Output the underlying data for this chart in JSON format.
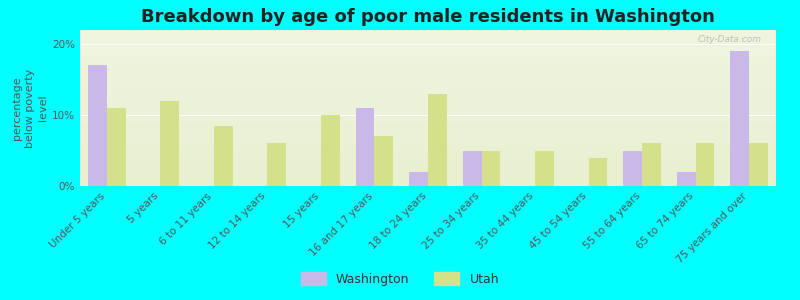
{
  "title": "Breakdown by age of poor male residents in Washington",
  "ylabel": "percentage\nbelow poverty\nlevel",
  "categories": [
    "Under 5 years",
    "5 years",
    "6 to 11 years",
    "12 to 14 years",
    "15 years",
    "16 and 17 years",
    "18 to 24 years",
    "25 to 34 years",
    "35 to 44 years",
    "45 to 54 years",
    "55 to 64 years",
    "65 to 74 years",
    "75 years and over"
  ],
  "washington": [
    17.0,
    0,
    0,
    0,
    0,
    11.0,
    2.0,
    5.0,
    0,
    0,
    5.0,
    2.0,
    19.0
  ],
  "utah": [
    11.0,
    12.0,
    8.5,
    6.0,
    10.0,
    7.0,
    13.0,
    5.0,
    5.0,
    4.0,
    6.0,
    6.0,
    6.0
  ],
  "washington_color": "#c9b8e8",
  "utah_color": "#d4e08a",
  "background_color": "#00ffff",
  "plot_bg_top": "#f0f5e0",
  "plot_bg_bottom": "#e8f0d0",
  "ylim": [
    0,
    22
  ],
  "yticks": [
    0,
    10,
    20
  ],
  "ytick_labels": [
    "0%",
    "10%",
    "20%"
  ],
  "bar_width": 0.35,
  "title_fontsize": 13,
  "axis_label_fontsize": 8,
  "tick_fontsize": 7.5,
  "legend_fontsize": 9,
  "watermark": "City-Data.com"
}
